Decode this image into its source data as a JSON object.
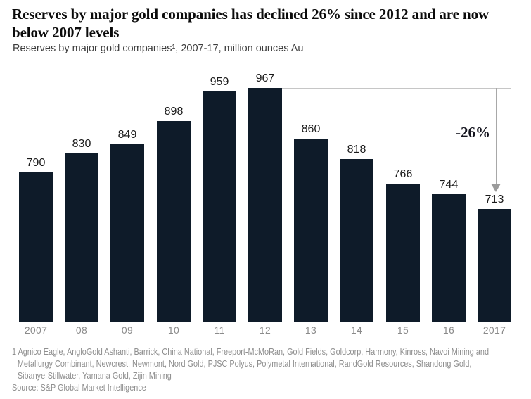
{
  "header": {
    "title": "Reserves by major gold companies has declined 26% since 2012 and are now below 2007 levels",
    "subtitle": "Reserves by major gold companies¹, 2007-17, million ounces Au"
  },
  "chart_data": {
    "type": "bar",
    "title": "Reserves by major gold companies has declined 26% since 2012 and are now below 2007 levels",
    "subtitle": "Reserves by major gold companies¹, 2007-17, million ounces Au",
    "categories": [
      "2007",
      "08",
      "09",
      "10",
      "11",
      "12",
      "13",
      "14",
      "15",
      "16",
      "2017"
    ],
    "values": [
      790,
      830,
      849,
      898,
      959,
      967,
      860,
      818,
      766,
      744,
      713
    ],
    "xlabel": "",
    "ylabel": "million ounces Au",
    "ylim": [
      477,
      967
    ],
    "grid": false,
    "legend": false,
    "value_labels": true,
    "annotation": {
      "label": "-26%",
      "from_category": "12",
      "from_value": 967,
      "to_category": "2017",
      "to_value": 713
    }
  },
  "footnote": {
    "marker": "1",
    "lines": [
      "1 Agnico Eagle, AngloGold Ashanti, Barrick, China National, Freeport-McMoRan, Gold Fields, Goldcorp, Harmony, Kinross, Navoi Mining and",
      "Metallurgy Combinant, Newcrest, Newmont, Nord Gold, PJSC Polyus, Polymetal International, RandGold Resources, Shandong Gold,",
      "Sibanye-Stillwater, Yamana Gold, Zijin Mining"
    ]
  },
  "source": "Source: S&P Global Market Intelligence",
  "colors": {
    "bar": "#0e1b29",
    "title_text": "#0b0b0b",
    "subtitle_text": "#3d3d3d",
    "value_label": "#1a1a1a",
    "tick_label": "#8b8b8b",
    "axis_line": "#c9c9c9",
    "separator": "#d0d0d0",
    "footnote_text": "#8f8f8f",
    "annotation_text": "#14141e",
    "annotation_ref_line": "#c6c6c6",
    "annotation_arrow_line": "#a8a8a8",
    "arrow_head": "#9b9b9b"
  }
}
